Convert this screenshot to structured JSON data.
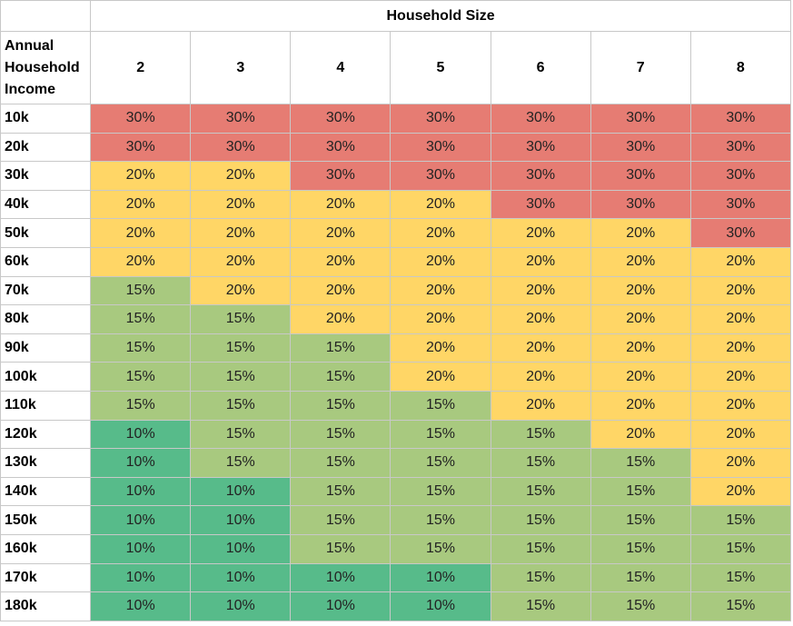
{
  "chart_data": {
    "type": "heatmap",
    "column_group_label": "Household Size",
    "row_axis_label": "Annual Household Income",
    "columns": [
      "2",
      "3",
      "4",
      "5",
      "6",
      "7",
      "8"
    ],
    "rows": [
      "10k",
      "20k",
      "30k",
      "40k",
      "50k",
      "60k",
      "70k",
      "80k",
      "90k",
      "100k",
      "110k",
      "120k",
      "130k",
      "140k",
      "150k",
      "160k",
      "170k",
      "180k"
    ],
    "values": [
      [
        "30%",
        "30%",
        "30%",
        "30%",
        "30%",
        "30%",
        "30%"
      ],
      [
        "30%",
        "30%",
        "30%",
        "30%",
        "30%",
        "30%",
        "30%"
      ],
      [
        "20%",
        "20%",
        "30%",
        "30%",
        "30%",
        "30%",
        "30%"
      ],
      [
        "20%",
        "20%",
        "20%",
        "20%",
        "30%",
        "30%",
        "30%"
      ],
      [
        "20%",
        "20%",
        "20%",
        "20%",
        "20%",
        "20%",
        "30%"
      ],
      [
        "20%",
        "20%",
        "20%",
        "20%",
        "20%",
        "20%",
        "20%"
      ],
      [
        "15%",
        "20%",
        "20%",
        "20%",
        "20%",
        "20%",
        "20%"
      ],
      [
        "15%",
        "15%",
        "20%",
        "20%",
        "20%",
        "20%",
        "20%"
      ],
      [
        "15%",
        "15%",
        "15%",
        "20%",
        "20%",
        "20%",
        "20%"
      ],
      [
        "15%",
        "15%",
        "15%",
        "20%",
        "20%",
        "20%",
        "20%"
      ],
      [
        "15%",
        "15%",
        "15%",
        "15%",
        "20%",
        "20%",
        "20%"
      ],
      [
        "10%",
        "15%",
        "15%",
        "15%",
        "15%",
        "20%",
        "20%"
      ],
      [
        "10%",
        "15%",
        "15%",
        "15%",
        "15%",
        "15%",
        "20%"
      ],
      [
        "10%",
        "10%",
        "15%",
        "15%",
        "15%",
        "15%",
        "20%"
      ],
      [
        "10%",
        "10%",
        "15%",
        "15%",
        "15%",
        "15%",
        "15%"
      ],
      [
        "10%",
        "10%",
        "15%",
        "15%",
        "15%",
        "15%",
        "15%"
      ],
      [
        "10%",
        "10%",
        "10%",
        "10%",
        "15%",
        "15%",
        "15%"
      ],
      [
        "10%",
        "10%",
        "10%",
        "10%",
        "15%",
        "15%",
        "15%"
      ]
    ],
    "color_map": {
      "30%": "#e67c73",
      "20%": "#ffd666",
      "15%": "#a8c97f",
      "10%": "#57bb8a"
    }
  }
}
